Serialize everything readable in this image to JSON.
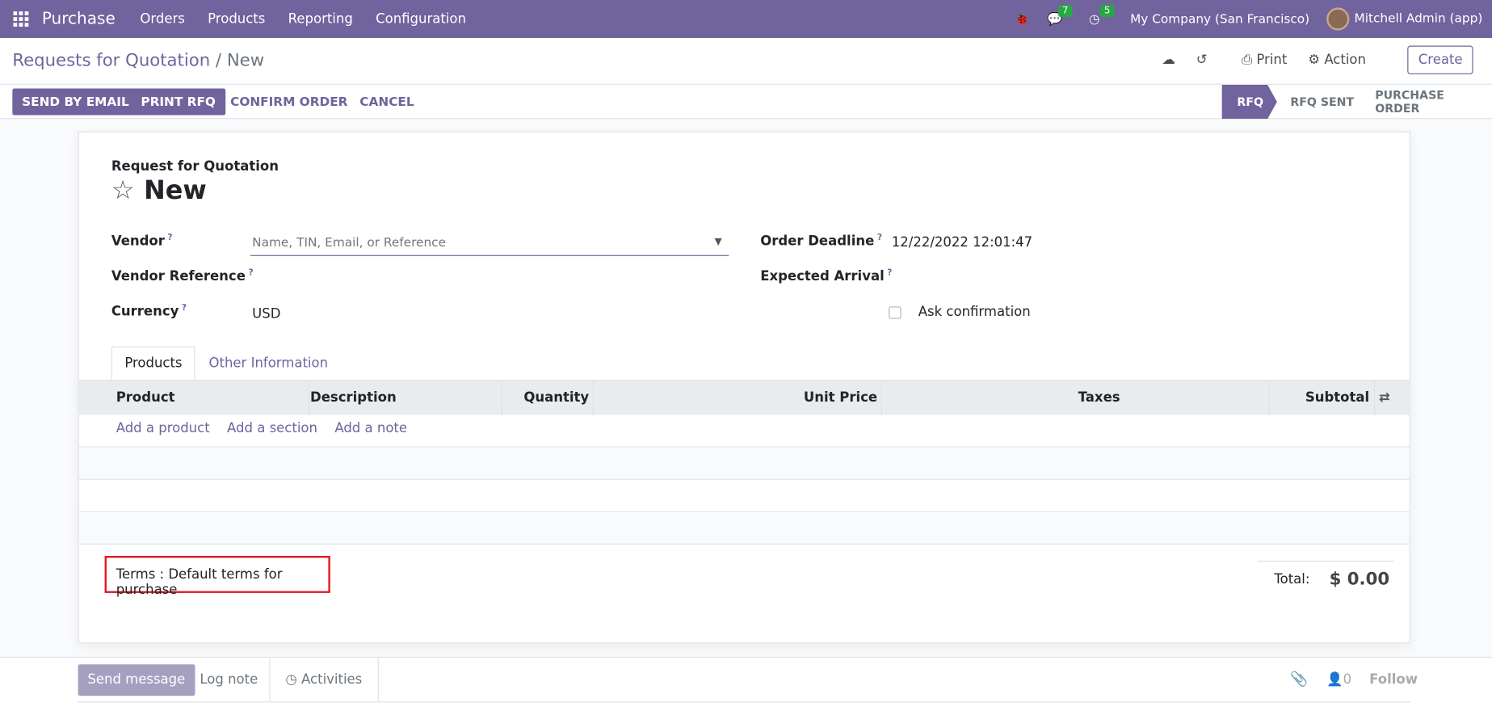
{
  "navbar": {
    "app": "Purchase",
    "menus": [
      "Orders",
      "Products",
      "Reporting",
      "Configuration"
    ],
    "messages_count": "7",
    "activities_count": "5",
    "company": "My Company (San Francisco)",
    "user": "Mitchell Admin (app)"
  },
  "breadcrumb": {
    "parent": "Requests for Quotation",
    "separator": "/",
    "current": "New"
  },
  "control": {
    "print": "Print",
    "action": "Action",
    "create": "Create"
  },
  "actions": {
    "send_email": "SEND BY EMAIL",
    "print_rfq": "PRINT RFQ",
    "confirm": "CONFIRM ORDER",
    "cancel": "CANCEL"
  },
  "stages": {
    "items": [
      "RFQ",
      "RFQ SENT",
      "PURCHASE ORDER"
    ],
    "active": "RFQ",
    "active_color": "#71639e"
  },
  "form": {
    "subtitle": "Request for Quotation",
    "title": "New",
    "vendor_label": "Vendor",
    "vendor_placeholder": "Name, TIN, Email, or Reference",
    "vendor_ref_label": "Vendor Reference",
    "currency_label": "Currency",
    "currency": "USD",
    "deadline_label": "Order Deadline",
    "deadline": "12/22/2022 12:01:47",
    "arrival_label": "Expected Arrival",
    "ask_confirmation": "Ask confirmation",
    "help": "?"
  },
  "tabs": [
    "Products",
    "Other Information"
  ],
  "table": {
    "columns": [
      "Product",
      "Description",
      "Quantity",
      "Unit Price",
      "Taxes",
      "Subtotal"
    ],
    "add_product": "Add a product",
    "add_section": "Add a section",
    "add_note": "Add a note"
  },
  "terms": "Terms : Default terms for purchase",
  "total": {
    "label": "Total:",
    "value": "$ 0.00"
  },
  "chatter": {
    "send_message": "Send message",
    "log_note": "Log note",
    "activities": "Activities",
    "followers": "0",
    "follow": "Follow"
  }
}
